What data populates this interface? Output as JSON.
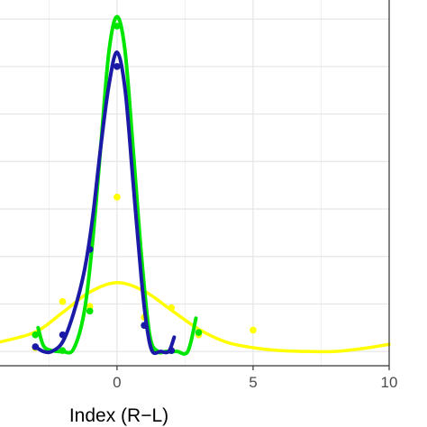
{
  "chart_data": {
    "type": "line",
    "xlabel": "Index (R−L)",
    "ylabel": "",
    "title": "",
    "xlim": [
      -4.3,
      10
    ],
    "ylim": [
      -0.3,
      7.4
    ],
    "x_ticks": [
      0,
      5,
      10
    ],
    "x_tick_labels": [
      "0",
      "5",
      "10"
    ],
    "y_gridlines": [
      0,
      1,
      2,
      3,
      4,
      5,
      6,
      7
    ],
    "grid": true,
    "series": [
      {
        "color": "#ffff00",
        "points": {
          "x": [
            -3,
            -2,
            -1,
            0,
            1,
            2,
            3,
            5
          ],
          "y": [
            0.08,
            1.05,
            0.95,
            3.25,
            0.72,
            0.92,
            0.35,
            0.45
          ]
        },
        "curve": {
          "x": [
            -4.3,
            -3,
            -2,
            -1,
            0,
            1,
            2,
            3,
            4,
            5,
            6,
            7,
            8,
            9,
            10
          ],
          "y": [
            0.2,
            0.41,
            0.82,
            1.25,
            1.45,
            1.27,
            0.87,
            0.47,
            0.2,
            0.08,
            0.02,
            0.0,
            0.0,
            0.06,
            0.15
          ]
        }
      },
      {
        "color": "#00e600",
        "points": {
          "x": [
            -3,
            -2,
            -1,
            0,
            1,
            2,
            3
          ],
          "y": [
            0.35,
            0.02,
            0.85,
            6.85,
            0.55,
            0.02,
            0.4
          ]
        },
        "curve": {
          "x": [
            -2.9,
            -2.7,
            -2.4,
            -2,
            -1.6,
            -1.2,
            -0.9,
            -0.6,
            -0.3,
            0,
            0.3,
            0.6,
            0.9,
            1.2,
            1.5,
            1.8,
            2.2,
            2.6,
            2.9
          ],
          "y": [
            0.5,
            0.12,
            0.02,
            0.0,
            0.05,
            0.85,
            2.3,
            4.3,
            6.3,
            7.05,
            6.3,
            4.2,
            2.0,
            0.35,
            0.0,
            0.0,
            0.0,
            0.0,
            0.7
          ]
        }
      },
      {
        "color": "#1a1aa6",
        "points": {
          "x": [
            -3,
            -2,
            -1,
            0,
            1,
            2
          ],
          "y": [
            0.1,
            0.35,
            2.15,
            6.0,
            0.55,
            0.02
          ]
        },
        "curve": {
          "x": [
            -3,
            -2.7,
            -2.4,
            -2,
            -1.6,
            -1.2,
            -0.9,
            -0.6,
            -0.3,
            0,
            0.3,
            0.6,
            0.9,
            1.1,
            1.3,
            1.6,
            1.9,
            2.1
          ],
          "y": [
            0.1,
            0.0,
            0.0,
            0.2,
            0.8,
            1.7,
            2.8,
            4.3,
            5.6,
            6.3,
            5.5,
            3.5,
            1.5,
            0.5,
            0.0,
            0.0,
            0.0,
            0.3
          ]
        }
      }
    ]
  }
}
